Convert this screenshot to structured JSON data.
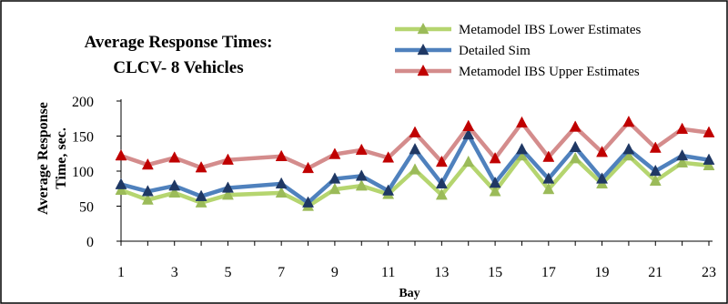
{
  "chart_data": {
    "type": "line",
    "title_line1": "Average Response Times:",
    "title_line2": "CLCV- 8 Vehicles",
    "xlabel": "Bay",
    "ylabel_line1": "Average Response",
    "ylabel_line2": "Time, sec.",
    "ylim": [
      0,
      200
    ],
    "yticks": [
      0,
      50,
      100,
      150,
      200
    ],
    "xlim": [
      1,
      23
    ],
    "xticks": [
      1,
      3,
      5,
      7,
      9,
      11,
      13,
      15,
      17,
      19,
      21,
      23
    ],
    "grid": "none",
    "legend_placement": "top-right",
    "series": [
      {
        "name": "Metamodel IBS Lower Estimates",
        "color": "#B5D56F",
        "points": [
          [
            1,
            73
          ],
          [
            2,
            59
          ],
          [
            3,
            69
          ],
          [
            4,
            55
          ],
          [
            5,
            66
          ],
          [
            7,
            69
          ],
          [
            8,
            50
          ],
          [
            9,
            74
          ],
          [
            10,
            79
          ],
          [
            11,
            67
          ],
          [
            12,
            102
          ],
          [
            13,
            66
          ],
          [
            14,
            113
          ],
          [
            15,
            71
          ],
          [
            16,
            122
          ],
          [
            17,
            74
          ],
          [
            18,
            118
          ],
          [
            19,
            82
          ],
          [
            20,
            122
          ],
          [
            21,
            86
          ],
          [
            22,
            112
          ],
          [
            23,
            108
          ]
        ]
      },
      {
        "name": "Detailed Sim",
        "color": "#4F81BD",
        "points": [
          [
            1,
            81
          ],
          [
            2,
            71
          ],
          [
            3,
            79
          ],
          [
            4,
            64
          ],
          [
            5,
            76
          ],
          [
            7,
            82
          ],
          [
            8,
            55
          ],
          [
            9,
            89
          ],
          [
            10,
            93
          ],
          [
            11,
            72
          ],
          [
            12,
            131
          ],
          [
            13,
            82
          ],
          [
            14,
            152
          ],
          [
            15,
            83
          ],
          [
            16,
            131
          ],
          [
            17,
            89
          ],
          [
            18,
            134
          ],
          [
            19,
            89
          ],
          [
            20,
            131
          ],
          [
            21,
            100
          ],
          [
            22,
            122
          ],
          [
            23,
            116
          ]
        ]
      },
      {
        "name": "Metamodel IBS Upper Estimates",
        "color": "#D48C8C",
        "points": [
          [
            1,
            122
          ],
          [
            2,
            109
          ],
          [
            3,
            119
          ],
          [
            4,
            105
          ],
          [
            5,
            116
          ],
          [
            7,
            121
          ],
          [
            8,
            104
          ],
          [
            9,
            124
          ],
          [
            10,
            130
          ],
          [
            11,
            119
          ],
          [
            12,
            155
          ],
          [
            13,
            113
          ],
          [
            14,
            164
          ],
          [
            15,
            118
          ],
          [
            16,
            169
          ],
          [
            17,
            120
          ],
          [
            18,
            163
          ],
          [
            19,
            127
          ],
          [
            20,
            170
          ],
          [
            21,
            133
          ],
          [
            22,
            160
          ],
          [
            23,
            155
          ]
        ]
      }
    ]
  },
  "marker_color": "#C00000",
  "marker_color_dark": "#1F3864",
  "marker_color_light": "#9BBB59"
}
